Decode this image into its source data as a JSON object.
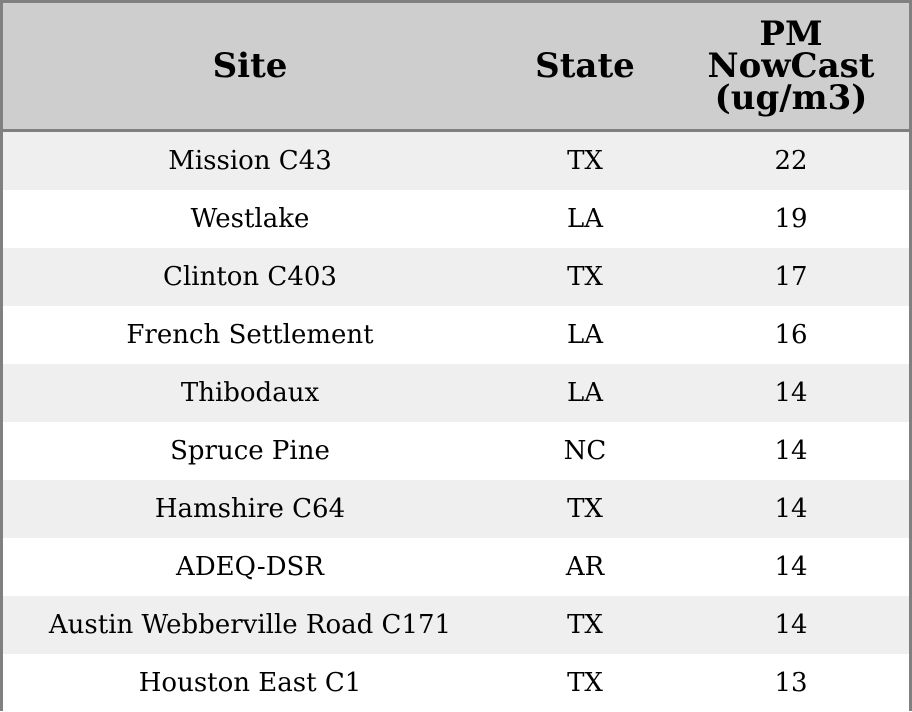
{
  "chart_data": {
    "type": "table",
    "columns": [
      "Site",
      "State",
      "PM NowCast (ug/m3)"
    ],
    "header_lines": {
      "site": "Site",
      "state": "State",
      "pm_line1": "PM",
      "pm_line2": "NowCast",
      "pm_line3": "(ug/m3)"
    },
    "rows": [
      {
        "site": "Mission C43",
        "state": "TX",
        "pm": "22"
      },
      {
        "site": "Westlake",
        "state": "LA",
        "pm": "19"
      },
      {
        "site": "Clinton C403",
        "state": "TX",
        "pm": "17"
      },
      {
        "site": "French Settlement",
        "state": "LA",
        "pm": "16"
      },
      {
        "site": "Thibodaux",
        "state": "LA",
        "pm": "14"
      },
      {
        "site": "Spruce Pine",
        "state": "NC",
        "pm": "14"
      },
      {
        "site": "Hamshire C64",
        "state": "TX",
        "pm": "14"
      },
      {
        "site": "ADEQ-DSR",
        "state": "AR",
        "pm": "14"
      },
      {
        "site": "Austin Webberville Road C171",
        "state": "TX",
        "pm": "14"
      },
      {
        "site": "Houston East C1",
        "state": "TX",
        "pm": "13"
      }
    ]
  },
  "colors": {
    "header_background": "#cecece",
    "stripe_background": "#efefef",
    "row_background": "#ffffff",
    "border": "#808080"
  }
}
